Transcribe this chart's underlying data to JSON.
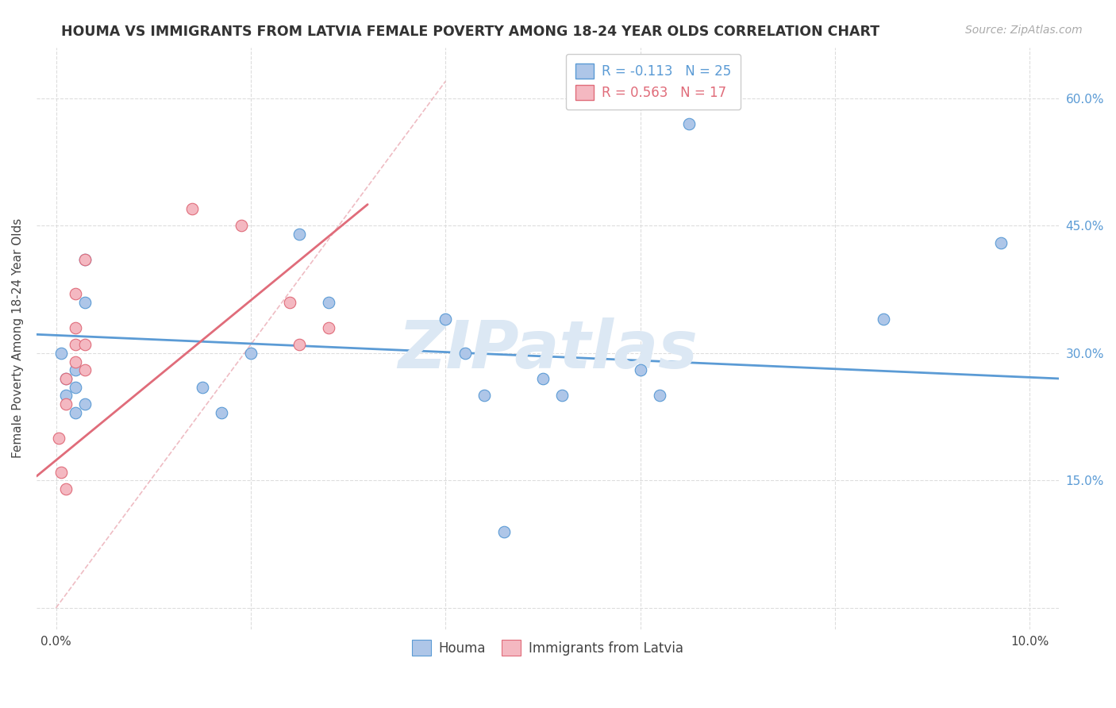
{
  "title": "HOUMA VS IMMIGRANTS FROM LATVIA FEMALE POVERTY AMONG 18-24 YEAR OLDS CORRELATION CHART",
  "source": "Source: ZipAtlas.com",
  "ylabel": "Female Poverty Among 18-24 Year Olds",
  "yticks": [
    0.0,
    0.15,
    0.3,
    0.45,
    0.6
  ],
  "ytick_labels": [
    "",
    "15.0%",
    "30.0%",
    "45.0%",
    "60.0%"
  ],
  "xticks": [
    0.0,
    0.02,
    0.04,
    0.06,
    0.08,
    0.1
  ],
  "xtick_labels": [
    "0.0%",
    "",
    "",
    "",
    "",
    "10.0%"
  ],
  "xmin": -0.002,
  "xmax": 0.103,
  "ymin": -0.025,
  "ymax": 0.66,
  "houma_color": "#aec6e8",
  "houma_edge_color": "#5b9bd5",
  "latvia_color": "#f4b8c1",
  "latvia_edge_color": "#e06c7a",
  "watermark": "ZIPatlas",
  "legend_r_houma": "R = -0.113",
  "legend_n_houma": "N = 25",
  "legend_r_latvia": "R = 0.563",
  "legend_n_latvia": "N = 17",
  "houma_x": [
    0.0005,
    0.001,
    0.001,
    0.002,
    0.002,
    0.002,
    0.003,
    0.003,
    0.003,
    0.015,
    0.017,
    0.02,
    0.025,
    0.028,
    0.04,
    0.042,
    0.044,
    0.046,
    0.05,
    0.052,
    0.06,
    0.062,
    0.065,
    0.085,
    0.097
  ],
  "houma_y": [
    0.3,
    0.27,
    0.25,
    0.28,
    0.26,
    0.23,
    0.41,
    0.36,
    0.24,
    0.26,
    0.23,
    0.3,
    0.44,
    0.36,
    0.34,
    0.3,
    0.25,
    0.09,
    0.27,
    0.25,
    0.28,
    0.25,
    0.57,
    0.34,
    0.43
  ],
  "latvia_x": [
    0.0003,
    0.0005,
    0.001,
    0.001,
    0.001,
    0.002,
    0.002,
    0.002,
    0.002,
    0.003,
    0.003,
    0.003,
    0.014,
    0.019,
    0.024,
    0.025,
    0.028
  ],
  "latvia_y": [
    0.2,
    0.16,
    0.14,
    0.27,
    0.24,
    0.29,
    0.31,
    0.33,
    0.37,
    0.28,
    0.31,
    0.41,
    0.47,
    0.45,
    0.36,
    0.31,
    0.33
  ],
  "houma_trend_x": [
    -0.002,
    0.103
  ],
  "houma_trend_y": [
    0.322,
    0.27
  ],
  "latvia_trend_x": [
    -0.002,
    0.032
  ],
  "latvia_trend_y": [
    0.155,
    0.475
  ],
  "ref_line_x": [
    0.0,
    0.04
  ],
  "ref_line_y": [
    0.0,
    0.62
  ],
  "marker_size": 110,
  "line_width": 2.0,
  "background_color": "#ffffff",
  "grid_color": "#dddddd",
  "title_fontsize": 12.5,
  "axis_fontsize": 11,
  "tick_fontsize": 11,
  "legend_fontsize": 12,
  "source_fontsize": 10
}
